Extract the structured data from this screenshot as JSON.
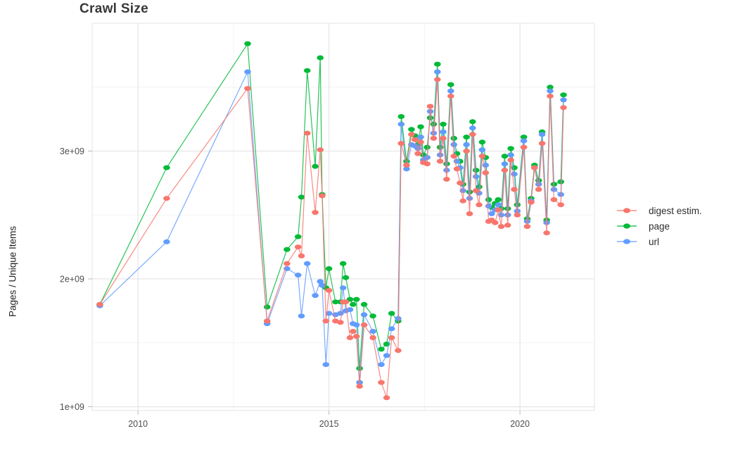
{
  "title": "Crawl Size",
  "axes": {
    "y_title": "Pages / Unique Items",
    "x_title": "",
    "x_ticks": [
      {
        "value": 2010,
        "label": "2010"
      },
      {
        "value": 2015,
        "label": "2015"
      },
      {
        "value": 2020,
        "label": "2020"
      }
    ],
    "x_minor": [
      2012.5,
      2017.5
    ],
    "y_ticks": [
      {
        "value": 1.0,
        "label": "1e+09"
      },
      {
        "value": 2.0,
        "label": "2e+09"
      },
      {
        "value": 3.0,
        "label": "3e+09"
      }
    ],
    "y_minor": [
      1.5,
      2.5,
      3.5
    ]
  },
  "legend": {
    "items": [
      {
        "label": "digest estim.",
        "color": "#F8766D"
      },
      {
        "label": "page",
        "color": "#00BA38"
      },
      {
        "label": "url",
        "color": "#619CFF"
      }
    ]
  },
  "colors": {
    "digest": "#F8766D",
    "page": "#00BA38",
    "url": "#619CFF",
    "grid_major": "#E6E6E6",
    "grid_minor": "#F2F2F2",
    "panel_border": "#E4E4E4",
    "tick_mark": "#BBBBBB"
  },
  "chart_data": {
    "type": "line",
    "title": "Crawl Size",
    "xlabel": "",
    "ylabel": "Pages / Unique Items",
    "unit": "pages (value × 1e9)",
    "xlim": [
      2008.8,
      2021.95
    ],
    "ylim": [
      0.97,
      4.0
    ],
    "grid": true,
    "legend_position": "right",
    "x": [
      2009.0,
      2010.75,
      2012.87,
      2013.38,
      2013.9,
      2014.19,
      2014.28,
      2014.43,
      2014.64,
      2014.77,
      2014.82,
      2014.92,
      2015.0,
      2015.17,
      2015.3,
      2015.37,
      2015.44,
      2015.55,
      2015.63,
      2015.72,
      2015.8,
      2015.92,
      2016.15,
      2016.37,
      2016.51,
      2016.64,
      2016.81,
      2016.89,
      2017.03,
      2017.16,
      2017.25,
      2017.33,
      2017.4,
      2017.47,
      2017.57,
      2017.65,
      2017.74,
      2017.84,
      2017.91,
      2017.99,
      2018.08,
      2018.19,
      2018.27,
      2018.35,
      2018.43,
      2018.51,
      2018.6,
      2018.68,
      2018.76,
      2018.85,
      2018.93,
      2019.01,
      2019.1,
      2019.18,
      2019.26,
      2019.35,
      2019.43,
      2019.51,
      2019.6,
      2019.68,
      2019.76,
      2019.85,
      2019.93,
      2020.1,
      2020.19,
      2020.29,
      2020.38,
      2020.49,
      2020.58,
      2020.7,
      2020.79,
      2020.89,
      2021.07,
      2021.14
    ],
    "series": [
      {
        "name": "page",
        "color": "#00BA38",
        "values": [
          1.8,
          2.87,
          3.84,
          1.78,
          2.23,
          2.33,
          2.64,
          3.63,
          2.88,
          3.73,
          2.66,
          1.93,
          2.08,
          1.82,
          1.82,
          2.12,
          2.01,
          1.84,
          1.8,
          1.84,
          1.3,
          1.8,
          1.71,
          1.45,
          1.49,
          1.73,
          1.67,
          3.27,
          2.92,
          3.17,
          3.12,
          3.05,
          3.19,
          2.97,
          3.03,
          3.26,
          3.21,
          3.68,
          3.03,
          3.21,
          2.9,
          3.52,
          3.1,
          2.98,
          2.92,
          2.74,
          3.11,
          2.68,
          3.23,
          2.85,
          2.72,
          3.07,
          2.95,
          2.62,
          2.56,
          2.59,
          2.62,
          2.55,
          2.96,
          2.55,
          3.02,
          2.87,
          2.58,
          3.11,
          2.47,
          2.63,
          2.89,
          2.77,
          3.15,
          2.46,
          3.5,
          2.74,
          2.76,
          3.44
        ]
      },
      {
        "name": "url",
        "color": "#619CFF",
        "values": [
          1.79,
          2.29,
          3.62,
          1.65,
          2.08,
          2.03,
          1.71,
          2.12,
          1.87,
          1.98,
          1.95,
          1.33,
          1.73,
          1.72,
          1.73,
          1.93,
          1.75,
          1.76,
          1.65,
          1.64,
          1.19,
          1.72,
          1.59,
          1.33,
          1.4,
          1.61,
          1.69,
          3.21,
          2.86,
          3.05,
          3.04,
          3.02,
          3.11,
          2.93,
          2.95,
          3.31,
          3.14,
          3.62,
          2.97,
          3.15,
          2.85,
          3.47,
          3.05,
          2.92,
          2.87,
          2.69,
          3.05,
          2.63,
          3.18,
          2.8,
          2.67,
          3.01,
          2.89,
          2.57,
          2.51,
          2.54,
          2.58,
          2.5,
          2.9,
          2.5,
          2.97,
          2.82,
          2.53,
          3.08,
          2.45,
          2.61,
          2.87,
          2.74,
          3.13,
          2.44,
          3.47,
          2.7,
          2.66,
          3.4
        ]
      },
      {
        "name": "digest estim.",
        "color": "#F8766D",
        "values": [
          1.8,
          2.63,
          3.49,
          1.67,
          2.12,
          2.25,
          2.18,
          3.14,
          2.52,
          3.01,
          2.65,
          1.67,
          1.91,
          1.67,
          1.66,
          1.82,
          1.82,
          1.54,
          1.59,
          1.55,
          1.16,
          1.64,
          1.54,
          1.19,
          1.07,
          1.54,
          1.44,
          3.06,
          2.89,
          3.13,
          3.09,
          2.98,
          3.07,
          2.91,
          2.9,
          3.35,
          3.1,
          3.56,
          2.92,
          3.1,
          2.78,
          3.43,
          2.96,
          2.86,
          2.75,
          2.61,
          3.0,
          2.51,
          3.13,
          2.69,
          2.58,
          2.96,
          2.83,
          2.45,
          2.46,
          2.44,
          2.54,
          2.41,
          2.85,
          2.42,
          2.93,
          2.7,
          2.5,
          3.03,
          2.41,
          2.6,
          2.87,
          2.7,
          3.06,
          2.36,
          3.43,
          2.62,
          2.58,
          3.34
        ]
      }
    ]
  }
}
